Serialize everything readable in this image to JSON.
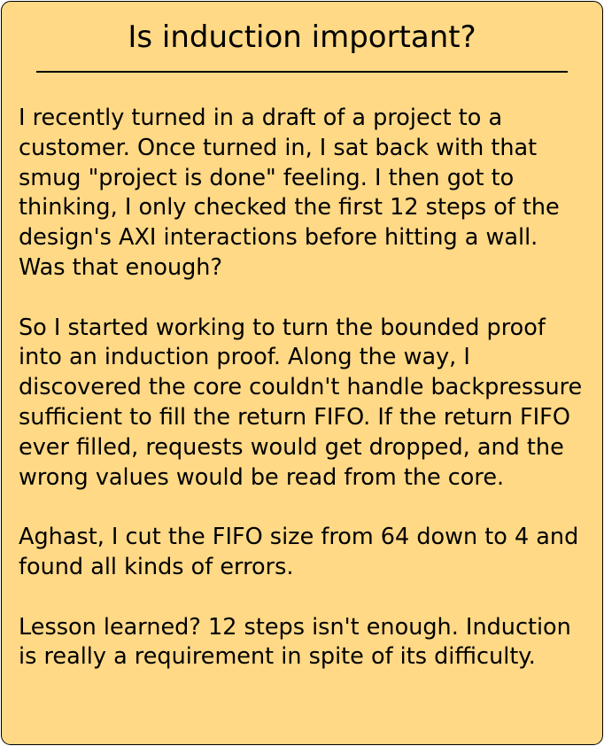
{
  "card": {
    "title": "Is induction important?",
    "paragraphs": [
      "I recently turned in a draft of a project to a customer.  Once turned in, I sat back with that smug \"project is done\" feeling.  I then got to thinking, I only checked the first 12 steps of the design's AXI interactions before hitting a wall.  Was that enough?",
      "So I started working to turn the bounded proof into an induction proof.  Along the way, I discovered the core couldn't handle backpressure sufficient to fill the return FIFO.  If the return FIFO ever filled, requests would get dropped, and the wrong values would be read from the core.",
      "Aghast, I cut the FIFO size from 64 down to 4 and found all kinds of errors.",
      "Lesson learned?  12 steps isn't enough.  Induction is really a requirement in spite of its difficulty."
    ]
  },
  "colors": {
    "card_background": "#ffd985",
    "border": "#000000",
    "text": "#000000"
  }
}
